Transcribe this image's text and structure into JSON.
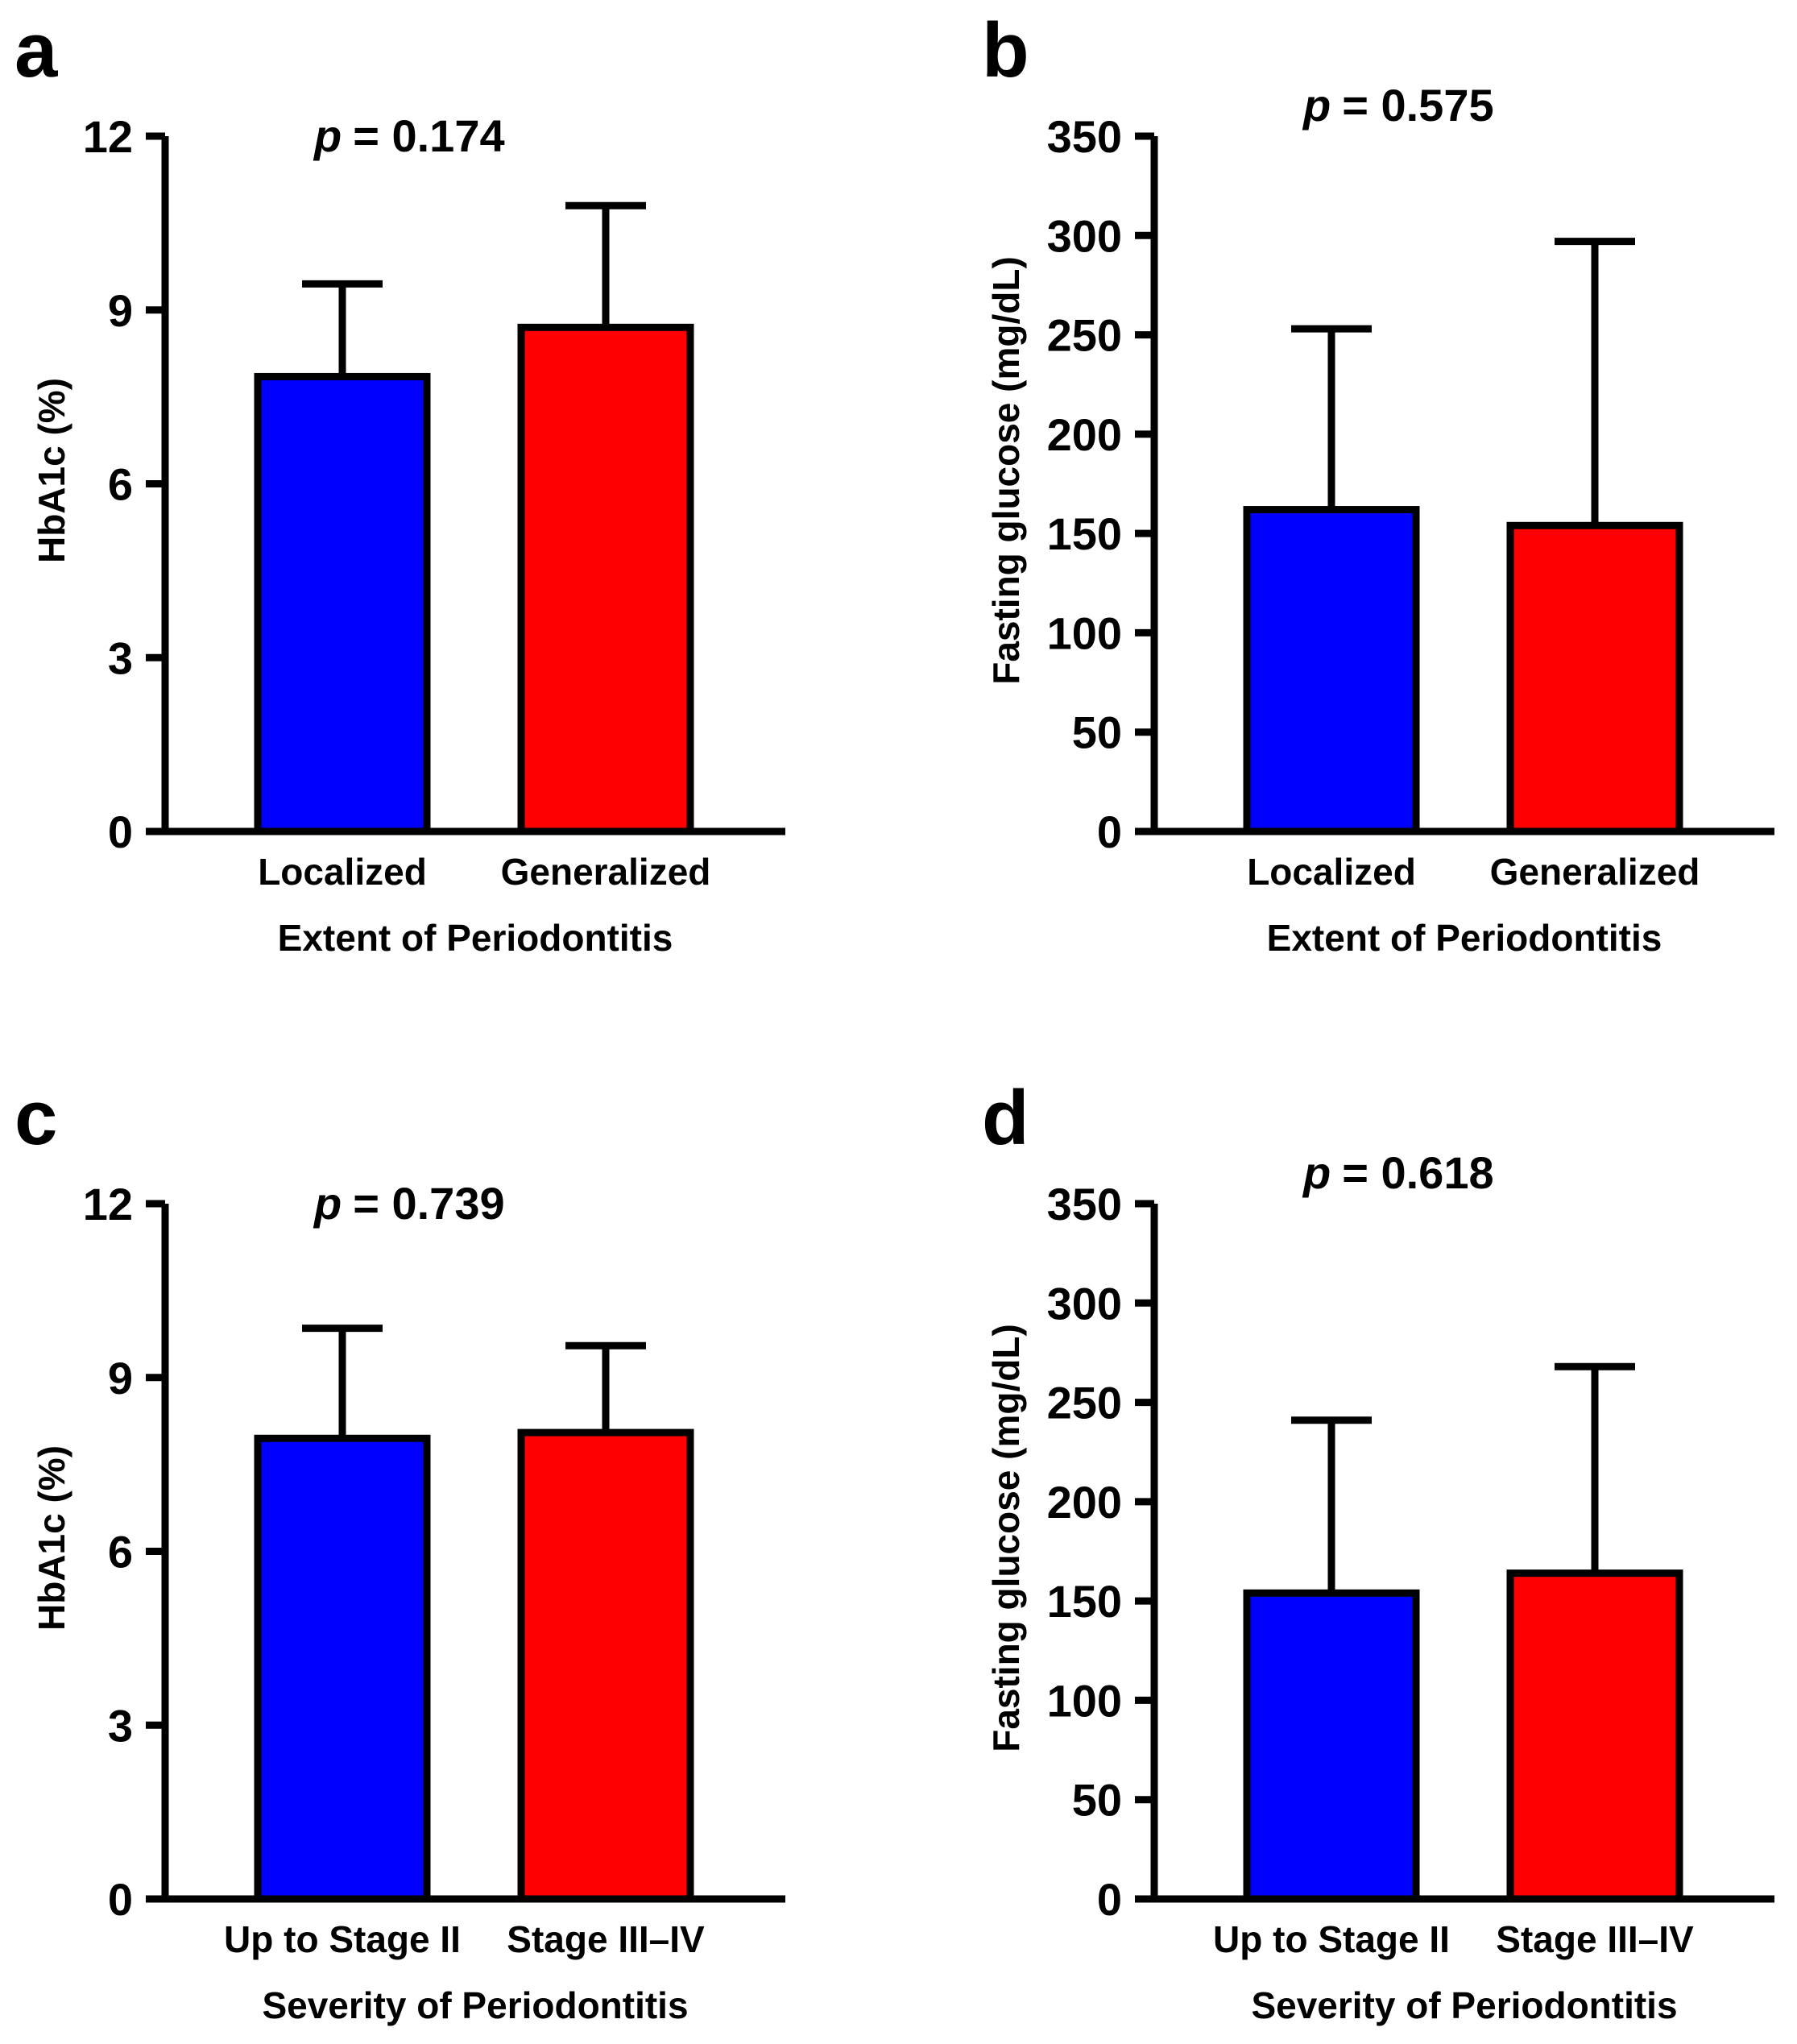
{
  "figure": {
    "panels": [
      "a",
      "b",
      "c",
      "d"
    ]
  },
  "chart_data": [
    {
      "panel": "a",
      "type": "bar",
      "p_label": "p",
      "p_value": "= 0.174",
      "categories": [
        "Localized",
        "Generalized"
      ],
      "values": [
        7.85,
        8.7
      ],
      "error_upper": [
        9.45,
        10.8
      ],
      "bar_colors": [
        "#0000ff",
        "#ff0000"
      ],
      "xlabel": "Extent of Periodontitis",
      "ylabel": "HbA1c (%)",
      "ylim": [
        0,
        12
      ],
      "yticks": [
        0,
        3,
        6,
        9,
        12
      ]
    },
    {
      "panel": "b",
      "type": "bar",
      "p_label": "p",
      "p_value": "= 0.575",
      "categories": [
        "Localized",
        "Generalized"
      ],
      "values": [
        162,
        154
      ],
      "error_upper": [
        253,
        297
      ],
      "bar_colors": [
        "#0000ff",
        "#ff0000"
      ],
      "xlabel": "Extent of Periodontitis",
      "ylabel": "Fasting glucose (mg/dL)",
      "ylim": [
        0,
        350
      ],
      "yticks": [
        0,
        50,
        100,
        150,
        200,
        250,
        300,
        350
      ]
    },
    {
      "panel": "c",
      "type": "bar",
      "p_label": "p",
      "p_value": "= 0.739",
      "categories": [
        "Up to Stage II",
        "Stage III–IV"
      ],
      "values": [
        7.95,
        8.05
      ],
      "error_upper": [
        9.85,
        9.55
      ],
      "bar_colors": [
        "#0000ff",
        "#ff0000"
      ],
      "xlabel": "Severity of Periodontitis",
      "ylabel": "HbA1c (%)",
      "ylim": [
        0,
        12
      ],
      "yticks": [
        0,
        3,
        6,
        9,
        12
      ]
    },
    {
      "panel": "d",
      "type": "bar",
      "p_label": "p",
      "p_value": "= 0.618",
      "categories": [
        "Up to Stage II",
        "Stage III–IV"
      ],
      "values": [
        154,
        164
      ],
      "error_upper": [
        241,
        268
      ],
      "bar_colors": [
        "#0000ff",
        "#ff0000"
      ],
      "xlabel": "Severity of Periodontitis",
      "ylabel": "Fasting glucose (mg/dL)",
      "ylim": [
        0,
        350
      ],
      "yticks": [
        0,
        50,
        100,
        150,
        200,
        250,
        300,
        350
      ]
    }
  ]
}
